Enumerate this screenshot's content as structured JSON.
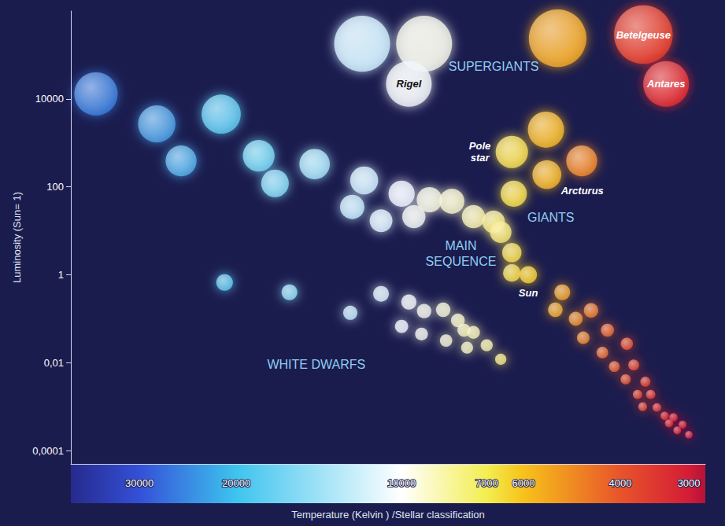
{
  "chart_data": {
    "type": "scatter",
    "x_label": "Temperature (Kelvin ) /Stellar classification",
    "y_label": "Luminosity (Sun= 1)",
    "log": true,
    "grid": false,
    "marker": "circle",
    "xlim": [
      40000,
      2800
    ],
    "xticks": [
      30000,
      20000,
      10000,
      7000,
      6000,
      4000,
      3000
    ],
    "ylim": [
      5e-05,
      1000000
    ],
    "yticks": [
      {
        "value": 0.0001,
        "label": "0,0001"
      },
      {
        "value": 0.01,
        "label": "0,01"
      },
      1,
      100,
      10000
    ],
    "annotations": [
      {
        "text": "SUPERGIANTS",
        "x": 6800,
        "y": 55000
      },
      {
        "text": "GIANTS",
        "x": 5350,
        "y": 20
      },
      {
        "text": "MAIN\nSEQUENCE",
        "x": 7800,
        "y": 3
      },
      {
        "text": "WHITE DWARFS",
        "x": 14300,
        "y": 0.009
      }
    ],
    "series": [
      {
        "x": [
          11800,
          9100,
          9700,
          5200,
          3630,
          3300
        ],
        "y": [
          180000,
          180000,
          22000,
          240000,
          290000,
          22000
        ],
        "labels": [
          null,
          null,
          "Rigel",
          null,
          "Betelgeuse",
          "Antares"
        ]
      },
      {
        "x": [
          6300,
          6250,
          5460,
          4700,
          5440
        ],
        "y": [
          620,
          70,
          2000,
          390,
          190
        ],
        "labels": [
          "Pole star",
          null,
          null,
          null,
          "Arcturus"
        ]
      },
      {
        "x": [
          36000,
          27900,
          21300,
          25200,
          18200,
          14400,
          17000,
          11700,
          10000,
          12300,
          10900,
          9500,
          8900,
          8100,
          7400,
          6800,
          6600,
          6300,
          6300,
          5880,
          5100,
          5250,
          4520,
          4820,
          4670,
          4220,
          4310,
          3890,
          4100,
          3780,
          3910,
          3600,
          3720,
          3520,
          3640,
          3430,
          3320,
          3200,
          3260,
          3080,
          3150,
          3000
        ],
        "y": [
          13000,
          2700,
          4500,
          390,
          510,
          330,
          120,
          140,
          70,
          35,
          17,
          21,
          51,
          47,
          21,
          16,
          9.3,
          3.2,
          1.1,
          1,
          0.4,
          0.16,
          0.155,
          0.1,
          0.037,
          0.055,
          0.017,
          0.027,
          0.0082,
          0.0089,
          0.0042,
          0.0037,
          0.0019,
          0.0019,
          0.001,
          0.00096,
          0.00062,
          0.00057,
          0.00042,
          0.00039,
          0.00029,
          0.00023
        ],
        "labels": [
          null,
          null,
          null,
          null,
          null,
          null,
          null,
          null,
          null,
          null,
          null,
          null,
          null,
          null,
          null,
          null,
          null,
          null,
          null,
          "Sun",
          null,
          null,
          null,
          null,
          null,
          null,
          null,
          null,
          null,
          null,
          null,
          null,
          null,
          null,
          null,
          null,
          null,
          null,
          null,
          null,
          null,
          null
        ]
      },
      {
        "x": [
          21000,
          16000,
          12400,
          10900,
          9700,
          10000,
          9100,
          9200,
          8400,
          7900,
          8300,
          7700,
          7400,
          7600,
          7000,
          6600
        ],
        "y": [
          0.67,
          0.4,
          0.137,
          0.37,
          0.24,
          0.067,
          0.15,
          0.045,
          0.16,
          0.092,
          0.032,
          0.055,
          0.049,
          0.022,
          0.025,
          0.012
        ]
      }
    ]
  }
}
